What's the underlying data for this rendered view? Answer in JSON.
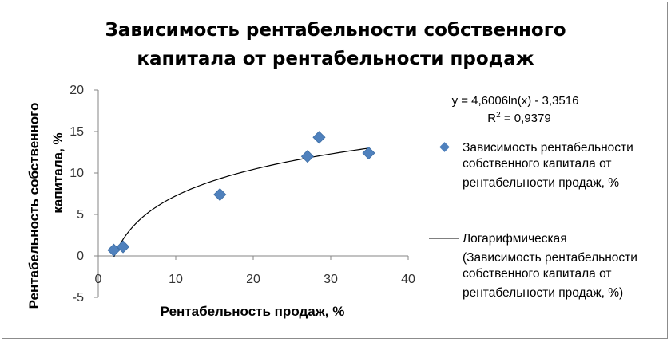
{
  "chart_data": {
    "type": "scatter",
    "title": [
      "Зависимость рентабельности собственного",
      "капитала от рентабельности продаж"
    ],
    "xlabel": "Рентабельность продаж, %",
    "ylabel": [
      "Рентабельность собственного",
      "капитала, %"
    ],
    "xlim": [
      0,
      40
    ],
    "ylim": [
      -5,
      20
    ],
    "xticks": [
      "0",
      "10",
      "20",
      "30",
      "40"
    ],
    "yticks": [
      "-5",
      "0",
      "5",
      "10",
      "15",
      "20"
    ],
    "grid": false,
    "legend_position": "right",
    "series": [
      {
        "name": [
          "Зависимость рентабельности",
          "собственного капитала от",
          "рентабельности продаж, %"
        ],
        "marker": "diamond",
        "color": "#4f81bd",
        "points": [
          {
            "x": 2.0,
            "y": 0.7
          },
          {
            "x": 3.2,
            "y": 1.1
          },
          {
            "x": 15.7,
            "y": 7.4
          },
          {
            "x": 27.0,
            "y": 12.0
          },
          {
            "x": 28.5,
            "y": 14.3
          },
          {
            "x": 34.9,
            "y": 12.4
          }
        ]
      }
    ],
    "trendline": {
      "type": "logarithmic",
      "a": 4.6006,
      "b": -3.3516,
      "x_range": [
        2.0,
        34.9
      ],
      "color": "#000000",
      "name": [
        "Логарифмическая",
        "(Зависимость рентабельности",
        "собственного капитала от",
        "рентабельности продаж, %)"
      ],
      "equation": "y = 4,6006ln(x) - 3,3516",
      "r2_label": "R",
      "r2_value": " = 0,9379"
    }
  }
}
